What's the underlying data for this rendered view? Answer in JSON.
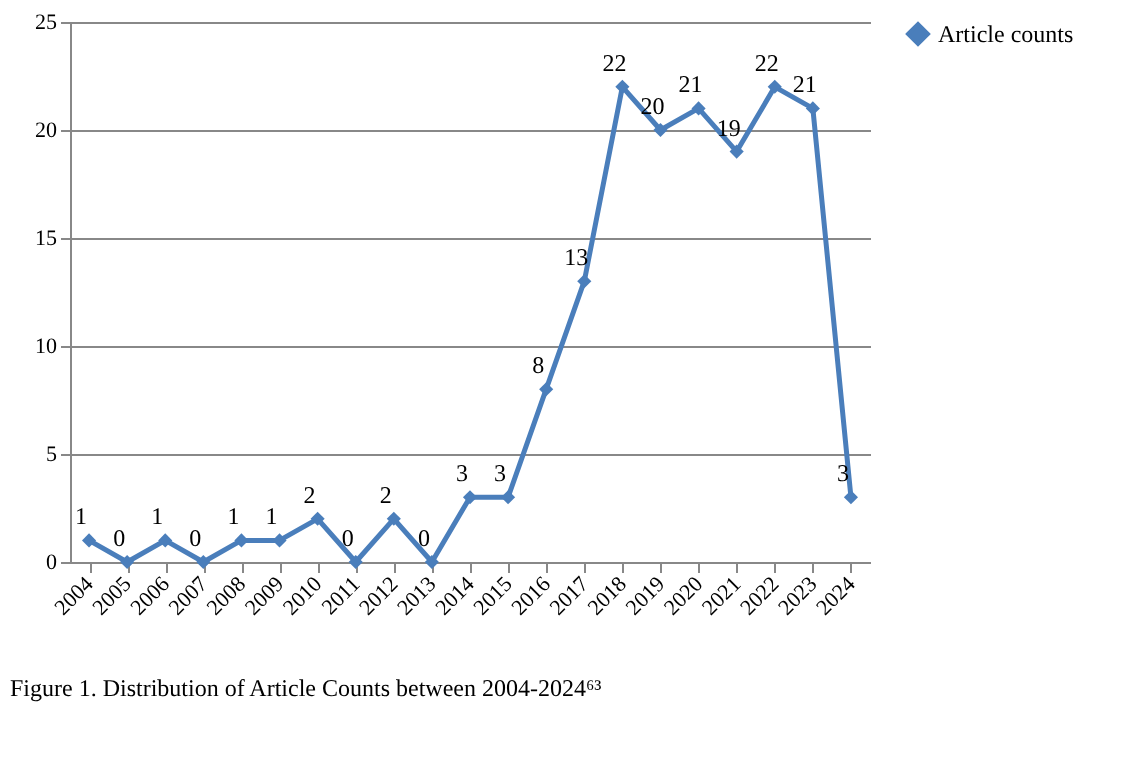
{
  "chart_data": {
    "type": "line",
    "categories": [
      "2004",
      "2005",
      "2006",
      "2007",
      "2008",
      "2009",
      "2010",
      "2011",
      "2012",
      "2013",
      "2014",
      "2015",
      "2016",
      "2017",
      "2018",
      "2019",
      "2020",
      "2021",
      "2022",
      "2023",
      "2024"
    ],
    "series": [
      {
        "name": "Article counts",
        "color": "#4a7ebb",
        "values": [
          1,
          0,
          1,
          0,
          1,
          1,
          2,
          0,
          2,
          0,
          3,
          3,
          8,
          13,
          22,
          20,
          21,
          19,
          22,
          21,
          3
        ]
      }
    ],
    "ylim": [
      0,
      25
    ],
    "yticks": [
      0,
      5,
      10,
      15,
      20,
      25
    ],
    "grid": "y",
    "legend": "right",
    "marker": "diamond",
    "line_style": "solid",
    "data_labels": true,
    "annotations": [
      "Figure 1. Distribution of Article Counts between 2004-2024⁶³"
    ]
  }
}
